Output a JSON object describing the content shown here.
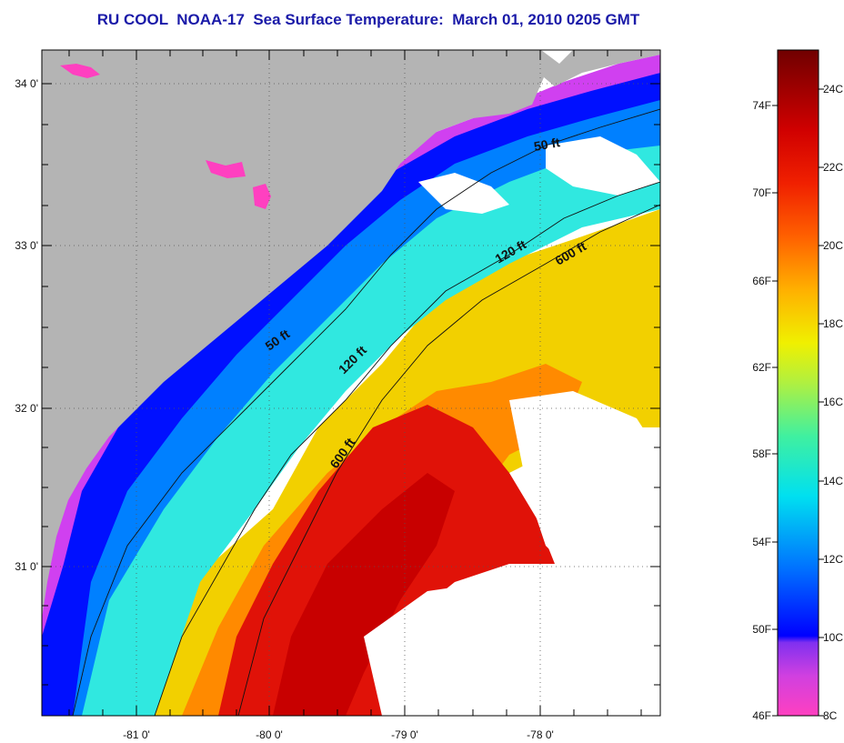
{
  "title": "RU COOL  NOAA-17  Sea Surface Temperature:  March 01, 2010 0205 GMT",
  "map": {
    "lon_ticks": [
      "-81 0'",
      "-80 0'",
      "-79 0'",
      "-78 0'"
    ],
    "lat_ticks": [
      "34 0'",
      "33 0'",
      "32 0'",
      "31 0'"
    ],
    "contours": [
      {
        "label": "50 ft",
        "depth_ft": 50
      },
      {
        "label": "50 ft",
        "depth_ft": 50
      },
      {
        "label": "120 ft",
        "depth_ft": 120
      },
      {
        "label": "120 ft",
        "depth_ft": 120
      },
      {
        "label": "600 ft",
        "depth_ft": 600
      },
      {
        "label": "600 ft",
        "depth_ft": 600
      }
    ],
    "land_color": "#b4b4b4"
  },
  "colorbar": {
    "fahrenheit_labels": [
      "74F",
      "70F",
      "66F",
      "62F",
      "58F",
      "54F",
      "50F",
      "46F"
    ],
    "celsius_labels": [
      "24C",
      "22C",
      "20C",
      "18C",
      "16C",
      "14C",
      "12C",
      "10C",
      "8C"
    ],
    "range_c": [
      8,
      25
    ],
    "colors": [
      "#ff40c0",
      "#c040e0",
      "#0000ff",
      "#0090ff",
      "#00e8f0",
      "#60f080",
      "#f0f000",
      "#ffb000",
      "#ff5000",
      "#e00000",
      "#a00000",
      "#700000"
    ]
  }
}
